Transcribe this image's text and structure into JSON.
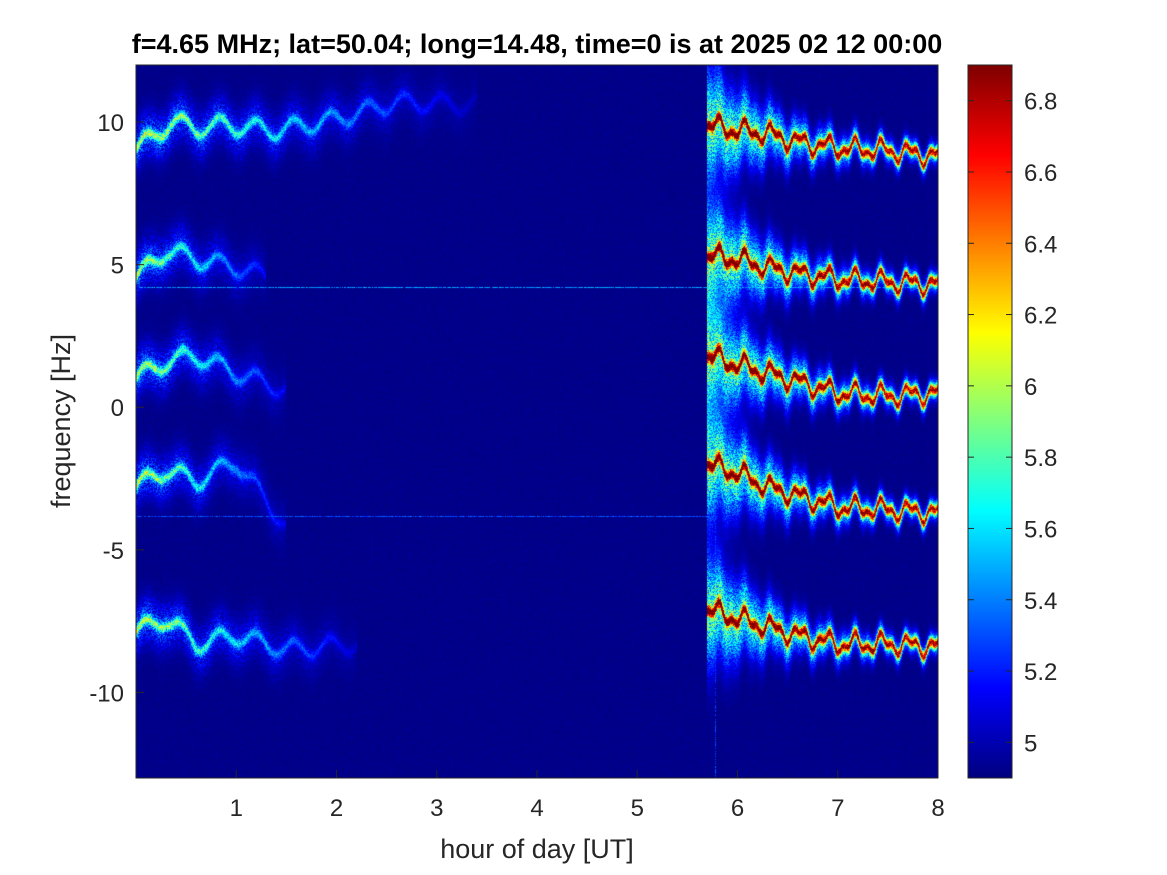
{
  "chart_data": {
    "type": "heatmap",
    "title": "f=4.65 MHz;  lat=50.04; long=14.48, time=0 is at 2025 02 12 00:00",
    "xlabel": "hour of day [UT]",
    "ylabel": "frequency [Hz]",
    "xlim": [
      0,
      8
    ],
    "ylim": [
      -13,
      12
    ],
    "xticks": [
      1,
      2,
      3,
      4,
      5,
      6,
      7,
      8
    ],
    "yticks": [
      10,
      5,
      0,
      -5,
      -10
    ],
    "colorbar": {
      "colormap": "jet",
      "clim": [
        4.9,
        6.9
      ],
      "ticks": [
        6.8,
        6.6,
        6.4,
        6.2,
        6,
        5.8,
        5.6,
        5.4,
        5.2,
        5
      ]
    },
    "background_level": 4.92,
    "features": {
      "interference_lines": [
        {
          "frequency": 4.2,
          "x_range": [
            0,
            8
          ],
          "level": 5.45
        },
        {
          "frequency": -3.8,
          "x_range": [
            0,
            5.8
          ],
          "level": 5.3
        }
      ],
      "vertical_artifact": {
        "time": 5.78,
        "level": 5.2
      },
      "dawn_onset_time": 5.7,
      "traces": [
        {
          "name": "",
          "night": [
            [
              0.0,
              9.0
            ],
            [
              0.35,
              10.0
            ],
            [
              0.6,
              9.8
            ],
            [
              0.9,
              9.9
            ],
            [
              1.4,
              9.7
            ],
            [
              2.0,
              10.1
            ],
            [
              2.6,
              10.7
            ],
            [
              3.4,
              10.6
            ]
          ],
          "day": [
            [
              5.7,
              9.9
            ],
            [
              6.0,
              9.7
            ],
            [
              6.3,
              9.6
            ],
            [
              6.6,
              9.3
            ],
            [
              7.0,
              9.1
            ],
            [
              7.5,
              9.0
            ],
            [
              8.0,
              8.8
            ]
          ]
        },
        {
          "name": "",
          "night": [
            [
              0.0,
              4.5
            ],
            [
              0.3,
              5.5
            ],
            [
              0.6,
              5.2
            ],
            [
              1.0,
              4.9
            ],
            [
              1.3,
              4.6
            ]
          ],
          "day": [
            [
              5.7,
              5.3
            ],
            [
              6.0,
              5.2
            ],
            [
              6.3,
              4.9
            ],
            [
              6.6,
              4.7
            ],
            [
              7.0,
              4.5
            ],
            [
              7.5,
              4.4
            ],
            [
              8.0,
              4.3
            ]
          ]
        },
        {
          "name": "",
          "night": [
            [
              0.0,
              1.0
            ],
            [
              0.3,
              1.6
            ],
            [
              0.6,
              1.8
            ],
            [
              1.0,
              1.2
            ],
            [
              1.5,
              0.6
            ]
          ],
          "day": [
            [
              5.7,
              1.8
            ],
            [
              6.0,
              1.5
            ],
            [
              6.3,
              1.2
            ],
            [
              6.6,
              0.9
            ],
            [
              7.0,
              0.5
            ],
            [
              7.5,
              0.4
            ],
            [
              8.0,
              0.5
            ]
          ]
        },
        {
          "name": "",
          "night": [
            [
              0.0,
              -2.8
            ],
            [
              0.3,
              -2.2
            ],
            [
              0.6,
              -2.6
            ],
            [
              1.0,
              -1.9
            ],
            [
              1.5,
              -4.2
            ]
          ],
          "day": [
            [
              5.7,
              -2.0
            ],
            [
              6.0,
              -2.3
            ],
            [
              6.3,
              -2.8
            ],
            [
              6.6,
              -3.1
            ],
            [
              7.0,
              -3.5
            ],
            [
              7.5,
              -3.6
            ],
            [
              8.0,
              -3.7
            ]
          ]
        },
        {
          "name": "",
          "night": [
            [
              0.0,
              -7.9
            ],
            [
              0.3,
              -7.4
            ],
            [
              0.6,
              -8.3
            ],
            [
              1.0,
              -8.0
            ],
            [
              1.5,
              -8.5
            ],
            [
              2.2,
              -8.3
            ]
          ],
          "day": [
            [
              5.7,
              -7.1
            ],
            [
              6.0,
              -7.4
            ],
            [
              6.3,
              -7.7
            ],
            [
              6.6,
              -8.0
            ],
            [
              7.0,
              -8.3
            ],
            [
              7.5,
              -8.3
            ],
            [
              8.0,
              -8.4
            ]
          ]
        }
      ]
    }
  }
}
